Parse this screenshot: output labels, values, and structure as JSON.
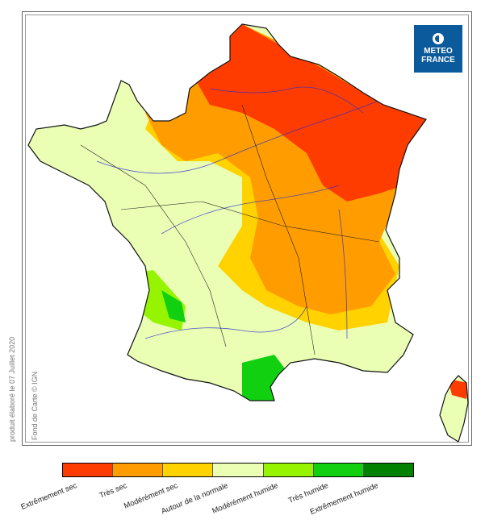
{
  "logo": {
    "line1": "METEO",
    "line2": "FRANCE"
  },
  "side_text": {
    "produced": "produit élaboré le 07 Juillet 2020",
    "basemap": "Fond de Carte © IGN"
  },
  "legend": [
    {
      "label": "Extrêmement sec",
      "color": "#ff3c00"
    },
    {
      "label": "Très sec",
      "color": "#ff9d00"
    },
    {
      "label": "Modérément sec",
      "color": "#ffd200"
    },
    {
      "label": "Autour de la normale",
      "color": "#eaffb4"
    },
    {
      "label": "Modérément humide",
      "color": "#96f400"
    },
    {
      "label": "Très humide",
      "color": "#10d010"
    },
    {
      "label": "Extrêmement humide",
      "color": "#008200"
    }
  ]
}
